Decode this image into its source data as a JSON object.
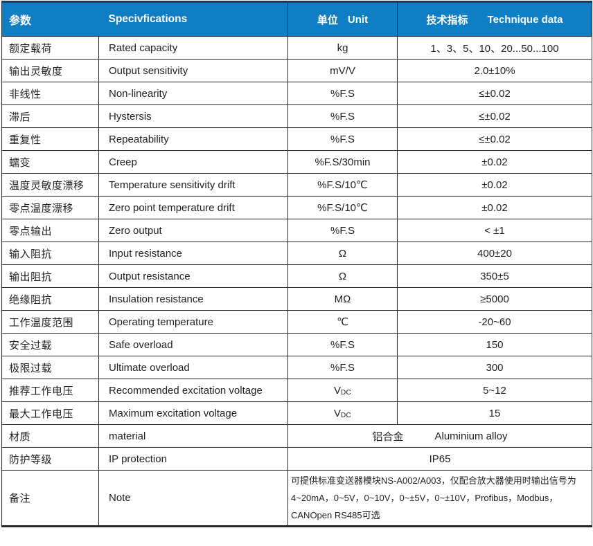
{
  "colors": {
    "header_bg": "#0f7ec5",
    "header_text": "#ffffff",
    "border": "#262626",
    "outer_top_border": "#1b3a5c",
    "text": "#1f1f1f"
  },
  "header": {
    "param_cn": "参数",
    "specs_en": "Specivfications",
    "unit_cn": "单位",
    "unit_en": "Unit",
    "data_cn": "技术指标",
    "data_en": "Technique data"
  },
  "rows": [
    {
      "cn": "额定载荷",
      "en": "Rated capacity",
      "unit": "kg",
      "value": "1、3、5、10、20...50...100"
    },
    {
      "cn": "输出灵敏度",
      "en": "Output sensitivity",
      "unit": "mV/V",
      "value": "2.0±10%"
    },
    {
      "cn": "非线性",
      "en": "Non-linearity",
      "unit": "%F.S",
      "value": "≤±0.02"
    },
    {
      "cn": "滞后",
      "en": "Hystersis",
      "unit": "%F.S",
      "value": "≤±0.02"
    },
    {
      "cn": "重复性",
      "en": "Repeatability",
      "unit": "%F.S",
      "value": "≤±0.02"
    },
    {
      "cn": "蠕变",
      "en": "Creep",
      "unit": "%F.S/30min",
      "value": "±0.02"
    },
    {
      "cn": "温度灵敏度漂移",
      "en": "Temperature sensitivity drift",
      "unit": "%F.S/10℃",
      "value": "±0.02"
    },
    {
      "cn": "零点温度漂移",
      "en": "Zero point temperature drift",
      "unit": "%F.S/10℃",
      "value": "±0.02"
    },
    {
      "cn": "零点输出",
      "en": "Zero output",
      "unit": "%F.S",
      "value": "< ±1"
    },
    {
      "cn": "输入阻抗",
      "en": "Input resistance",
      "unit": "Ω",
      "value": "400±20"
    },
    {
      "cn": "输出阻抗",
      "en": "Output resistance",
      "unit": "Ω",
      "value": "350±5"
    },
    {
      "cn": "绝缘阻抗",
      "en": "Insulation resistance",
      "unit": "MΩ",
      "value": "≥5000"
    },
    {
      "cn": "工作温度范围",
      "en": "Operating temperature",
      "unit": "℃",
      "value": "-20~60"
    },
    {
      "cn": "安全过载",
      "en": "Safe overload",
      "unit": "%F.S",
      "value": "150"
    },
    {
      "cn": "极限过载",
      "en": "Ultimate overload",
      "unit": "%F.S",
      "value": "300"
    },
    {
      "cn": "推荐工作电压",
      "en": "Recommended excitation voltage",
      "unit_main": "V",
      "unit_sub": "DC",
      "value": "5~12"
    },
    {
      "cn": "最大工作电压",
      "en": "Maximum excitation voltage",
      "unit_main": "V",
      "unit_sub": "DC",
      "value": "15"
    },
    {
      "cn": "材质",
      "en": "material",
      "merged": true,
      "merged_parts": [
        "铝合金",
        "Aluminium alloy"
      ]
    },
    {
      "cn": "防护等级",
      "en": "IP protection",
      "merged": true,
      "merged_value": "IP65"
    },
    {
      "cn": "备注",
      "en": "Note",
      "merged": true,
      "note_lines": [
        "可提供标准变送器模块NS-A002/A003，仅配合放大器使用时输出信号为",
        "4~20mA，0~5V，0~10V，0~±5V，0~±10V，Profibus，Modbus，",
        "CANOpen RS485可选"
      ]
    }
  ]
}
